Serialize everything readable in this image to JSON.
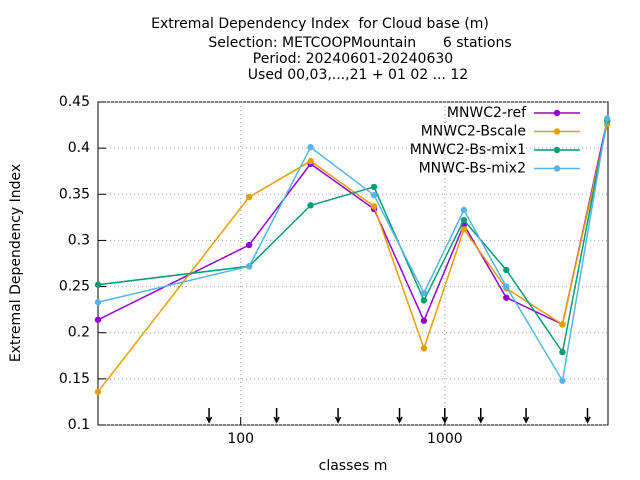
{
  "chart_data": {
    "type": "line",
    "title": [
      "Extremal Dependency Index  for Cloud base (m)",
      "Selection: METCOOPMountain      6 stations",
      "Period: 20240601-20240630",
      "Used 00,03,...,21 + 01 02 ... 12"
    ],
    "xlabel": "classes m",
    "ylabel": "Extremal Dependency Index",
    "x": [
      20,
      110,
      220,
      450,
      790,
      1240,
      2000,
      3770,
      6240
    ],
    "series": [
      {
        "name": "MNWC2-ref",
        "color": "#9400d3",
        "values": [
          0.214,
          0.295,
          0.383,
          0.334,
          0.213,
          0.317,
          0.238,
          0.209,
          0.43
        ]
      },
      {
        "name": "MNWC2-Bscale",
        "color": "#e69f00",
        "values": [
          0.136,
          0.347,
          0.386,
          0.337,
          0.183,
          0.312,
          0.248,
          0.209,
          0.426
        ]
      },
      {
        "name": "MNWC2-Bs-mix1",
        "color": "#009e73",
        "values": [
          0.252,
          0.272,
          0.338,
          0.358,
          0.235,
          0.322,
          0.268,
          0.179,
          0.43
        ]
      },
      {
        "name": "MNWC-Bs-mix2",
        "color": "#56b4e9",
        "values": [
          0.233,
          0.272,
          0.401,
          0.349,
          0.243,
          0.333,
          0.25,
          0.148,
          0.432
        ]
      }
    ],
    "markers": [
      70,
      150,
      300,
      600,
      1000,
      1500,
      2500,
      5000
    ],
    "xlim": [
      20,
      6300
    ],
    "xticks": [
      100,
      1000
    ],
    "xlog": true,
    "ylim": [
      0.1,
      0.45
    ],
    "yticks": [
      0.1,
      0.15,
      0.2,
      0.25,
      0.3,
      0.35,
      0.4,
      0.45
    ],
    "grid": true,
    "legend": "top-right"
  }
}
